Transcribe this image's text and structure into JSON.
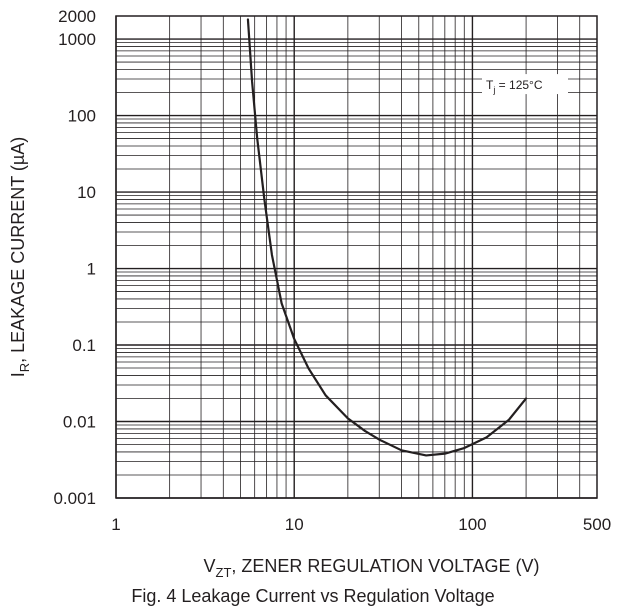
{
  "chart_data": {
    "type": "line",
    "x_scale": "log",
    "y_scale": "log",
    "xlim": [
      1,
      500
    ],
    "ylim": [
      0.001,
      2000
    ],
    "grid": true,
    "x_ticks": [
      {
        "value": 1,
        "label": "1"
      },
      {
        "value": 10,
        "label": "10"
      },
      {
        "value": 100,
        "label": "100"
      },
      {
        "value": 500,
        "label": "500"
      }
    ],
    "y_ticks": [
      {
        "value": 0.001,
        "label": "0.001"
      },
      {
        "value": 0.01,
        "label": "0.01"
      },
      {
        "value": 0.1,
        "label": "0.1"
      },
      {
        "value": 1,
        "label": "1"
      },
      {
        "value": 10,
        "label": "10"
      },
      {
        "value": 100,
        "label": "100"
      },
      {
        "value": 1000,
        "label": "1000"
      },
      {
        "value": 2000,
        "label": "2000"
      }
    ],
    "ylabel": {
      "main": "I",
      "sub": "R",
      "rest": ", LEAKAGE CURRENT (µA)"
    },
    "xlabel": {
      "main": "V",
      "sub": "ZT",
      "rest": ", ZENER REGULATION VOLTAGE (V)"
    },
    "annotation": {
      "main": "T",
      "sub": "j",
      "rest": " = 125°C",
      "at_y": 250
    },
    "series": [
      {
        "points": [
          [
            5.5,
            1800
          ],
          [
            5.8,
            280
          ],
          [
            6.2,
            50
          ],
          [
            6.8,
            8
          ],
          [
            7.5,
            1.5
          ],
          [
            8.5,
            0.35
          ],
          [
            10,
            0.12
          ],
          [
            12,
            0.05
          ],
          [
            15,
            0.022
          ],
          [
            20,
            0.011
          ],
          [
            25,
            0.0075
          ],
          [
            30,
            0.0058
          ],
          [
            40,
            0.0042
          ],
          [
            55,
            0.0036
          ],
          [
            70,
            0.0038
          ],
          [
            90,
            0.0045
          ],
          [
            120,
            0.0062
          ],
          [
            160,
            0.0105
          ],
          [
            200,
            0.02
          ]
        ]
      }
    ]
  },
  "caption": "Fig. 4  Leakage Current vs Regulation Voltage"
}
